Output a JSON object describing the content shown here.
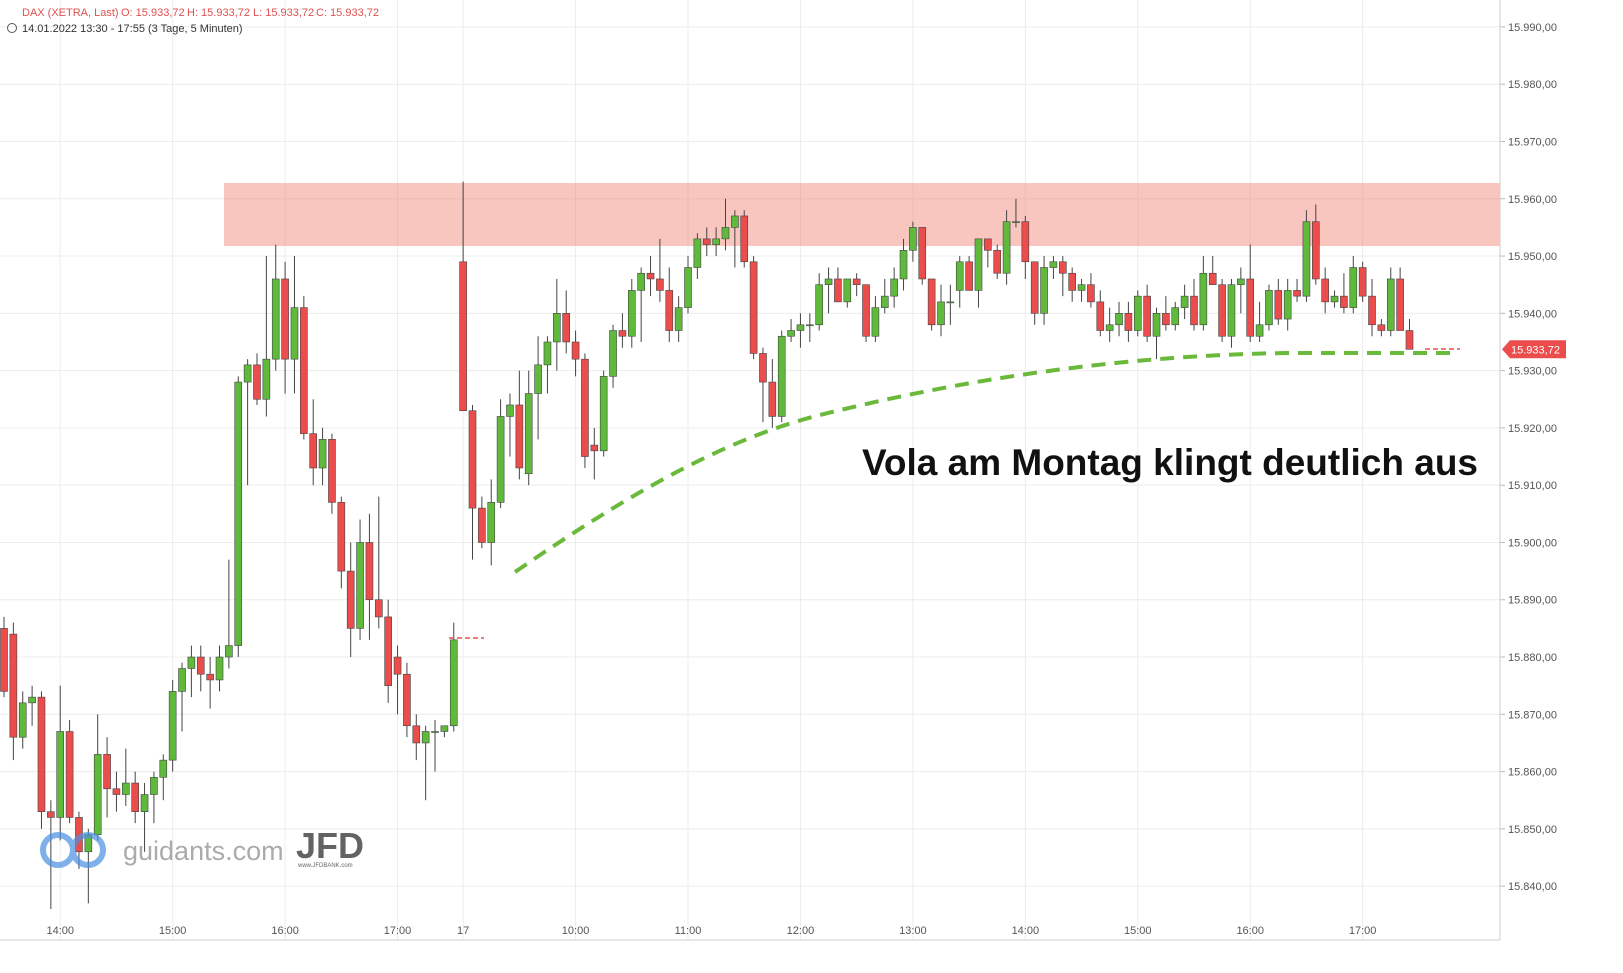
{
  "chart_data": {
    "type": "candlestick",
    "header": [
      "DAX (XETRA, Last)",
      "O: 15.933,72",
      "H: 15.933,72",
      "L: 15.933,72",
      "C: 15.933,72"
    ],
    "subtitle": "14.01.2022 13:30 - 17:55",
    "period": "(3 Tage, 5 Minuten)",
    "annotation": "Vola am Montag klingt deutlich aus",
    "last_label": "15.933,72",
    "watermark": [
      "guidants.com",
      "JFD",
      "www.JFDBANK.com"
    ],
    "up_color": "#5fba3c",
    "down_color": "#eb4d4d",
    "grid": true,
    "ylim": [
      15830.6,
      15994.7
    ],
    "yticks": [
      {
        "value": 15840,
        "label": "15.840,00"
      },
      {
        "value": 15850,
        "label": "15.850,00"
      },
      {
        "value": 15860,
        "label": "15.860,00"
      },
      {
        "value": 15870,
        "label": "15.870,00"
      },
      {
        "value": 15880,
        "label": "15.880,00"
      },
      {
        "value": 15890,
        "label": "15.890,00"
      },
      {
        "value": 15900,
        "label": "15.900,00"
      },
      {
        "value": 15910,
        "label": "15.910,00"
      },
      {
        "value": 15920,
        "label": "15.920,00"
      },
      {
        "value": 15930,
        "label": "15.930,00"
      },
      {
        "value": 15940,
        "label": "15.940,00"
      },
      {
        "value": 15950,
        "label": "15.950,00"
      },
      {
        "value": 15960,
        "label": "15.960,00"
      },
      {
        "value": 15970,
        "label": "15.970,00"
      },
      {
        "value": 15980,
        "label": "15.980,00"
      },
      {
        "value": 15990,
        "label": "15.990,00"
      }
    ],
    "categories": [
      null,
      null,
      null,
      null,
      null,
      null,
      "14:00",
      null,
      null,
      null,
      null,
      null,
      null,
      null,
      null,
      null,
      null,
      null,
      "15:00",
      null,
      null,
      null,
      null,
      null,
      null,
      null,
      null,
      null,
      null,
      null,
      "16:00",
      null,
      null,
      null,
      null,
      null,
      null,
      null,
      null,
      null,
      null,
      null,
      "17:00",
      null,
      null,
      null,
      null,
      null,
      null,
      "17",
      null,
      null,
      null,
      null,
      null,
      null,
      null,
      null,
      null,
      null,
      null,
      "10:00",
      null,
      null,
      null,
      null,
      null,
      null,
      null,
      null,
      null,
      null,
      null,
      "11:00",
      null,
      null,
      null,
      null,
      null,
      null,
      null,
      null,
      null,
      null,
      null,
      "12:00",
      null,
      null,
      null,
      null,
      null,
      null,
      null,
      null,
      null,
      null,
      null,
      "13:00",
      null,
      null,
      null,
      null,
      null,
      null,
      null,
      null,
      null,
      null,
      null,
      "14:00",
      null,
      null,
      null,
      null,
      null,
      null,
      null,
      null,
      null,
      null,
      null,
      "15:00",
      null,
      null,
      null,
      null,
      null,
      null,
      null,
      null,
      null,
      null,
      null,
      "16:00",
      null,
      null,
      null,
      null,
      null,
      null,
      null,
      null,
      null,
      null,
      null,
      "17:00",
      null,
      null,
      null,
      null,
      null
    ],
    "values": [
      [
        15885,
        15887,
        15873,
        15874
      ],
      [
        15884,
        15886,
        15862,
        15866
      ],
      [
        15866,
        15874,
        15864,
        15872
      ],
      [
        15872,
        15875,
        15868,
        15873
      ],
      [
        15873,
        15874,
        15850,
        15853
      ],
      [
        15853,
        15855,
        15836,
        15852
      ],
      [
        15852,
        15875,
        15848,
        15867
      ],
      [
        15867,
        15869,
        15851,
        15852
      ],
      [
        15852,
        15853,
        15843,
        15846
      ],
      [
        15846,
        15850,
        15837,
        15849
      ],
      [
        15849,
        15870,
        15848,
        15863
      ],
      [
        15863,
        15866,
        15852,
        15857
      ],
      [
        15857,
        15860,
        15853,
        15856
      ],
      [
        15856,
        15864,
        15854,
        15858
      ],
      [
        15858,
        15860,
        15851,
        15853
      ],
      [
        15853,
        15858,
        15846,
        15856
      ],
      [
        15856,
        15860,
        15851,
        15859
      ],
      [
        15859,
        15863,
        15855,
        15862
      ],
      [
        15862,
        15876,
        15860,
        15874
      ],
      [
        15874,
        15879,
        15867,
        15878
      ],
      [
        15878,
        15882,
        15873,
        15880
      ],
      [
        15880,
        15882,
        15874,
        15877
      ],
      [
        15877,
        15880,
        15871,
        15876
      ],
      [
        15876,
        15882,
        15874,
        15880
      ],
      [
        15880,
        15897,
        15878,
        15882
      ],
      [
        15882,
        15929,
        15880,
        15928
      ],
      [
        15928,
        15932,
        15910,
        15931
      ],
      [
        15931,
        15933,
        15924,
        15925
      ],
      [
        15925,
        15950,
        15922,
        15932
      ],
      [
        15932,
        15952,
        15930,
        15946
      ],
      [
        15946,
        15949,
        15926,
        15932
      ],
      [
        15932,
        15950,
        15926,
        15941
      ],
      [
        15941,
        15943,
        15918,
        15919
      ],
      [
        15919,
        15925,
        15910,
        15913
      ],
      [
        15913,
        15920,
        15910,
        15918
      ],
      [
        15918,
        15919,
        15905,
        15907
      ],
      [
        15907,
        15908,
        15892,
        15895
      ],
      [
        15895,
        15900,
        15880,
        15885
      ],
      [
        15885,
        15904,
        15883,
        15900
      ],
      [
        15900,
        15905,
        15883,
        15890
      ],
      [
        15890,
        15908,
        15885,
        15887
      ],
      [
        15887,
        15890,
        15872,
        15875
      ],
      [
        15880,
        15882,
        15870,
        15877
      ],
      [
        15877,
        15879,
        15866,
        15868
      ],
      [
        15868,
        15870,
        15862,
        15865
      ],
      [
        15865,
        15868,
        15855,
        15867
      ],
      [
        15867,
        15869,
        15860,
        15867
      ],
      [
        15867,
        15868,
        15866,
        15868
      ],
      [
        15868,
        15886,
        15867,
        15883
      ],
      [
        15949,
        15963,
        15923,
        15923
      ],
      [
        15923,
        15924,
        15897,
        15906
      ],
      [
        15906,
        15908,
        15899,
        15900
      ],
      [
        15900,
        15911,
        15896,
        15907
      ],
      [
        15907,
        15925,
        15906,
        15922
      ],
      [
        15922,
        15926,
        15915,
        15924
      ],
      [
        15924,
        15930,
        15911,
        15913
      ],
      [
        15912,
        15930,
        15910,
        15926
      ],
      [
        15926,
        15936,
        15918,
        15931
      ],
      [
        15931,
        15936,
        15926,
        15935
      ],
      [
        15935,
        15946,
        15930,
        15940
      ],
      [
        15940,
        15944,
        15933,
        15935
      ],
      [
        15935,
        15937,
        15929,
        15932
      ],
      [
        15932,
        15933,
        15913,
        15915
      ],
      [
        15917,
        15920,
        15911,
        15916
      ],
      [
        15916,
        15930,
        15915,
        15929
      ],
      [
        15929,
        15938,
        15927,
        15937
      ],
      [
        15937,
        15940,
        15934,
        15936
      ],
      [
        15936,
        15946,
        15934,
        15944
      ],
      [
        15944,
        15948,
        15935,
        15947
      ],
      [
        15947,
        15950,
        15943,
        15946
      ],
      [
        15946,
        15953,
        15942,
        15944
      ],
      [
        15944,
        15948,
        15935,
        15937
      ],
      [
        15937,
        15943,
        15935,
        15941
      ],
      [
        15941,
        15950,
        15940,
        15948
      ],
      [
        15948,
        15954,
        15946,
        15953
      ],
      [
        15953,
        15955,
        15950,
        15952
      ],
      [
        15952,
        15955,
        15950,
        15953
      ],
      [
        15953,
        15960,
        15951,
        15955
      ],
      [
        15955,
        15958,
        15948,
        15957
      ],
      [
        15957,
        15958,
        15948,
        15949
      ],
      [
        15949,
        15950,
        15932,
        15933
      ],
      [
        15933,
        15934,
        15921,
        15928
      ],
      [
        15928,
        15932,
        15920,
        15922
      ],
      [
        15922,
        15937,
        15921,
        15936
      ],
      [
        15936,
        15939,
        15935,
        15937
      ],
      [
        15937,
        15940,
        15934,
        15938
      ],
      [
        15938,
        15940,
        15935,
        15938
      ],
      [
        15938,
        15947,
        15937,
        15945
      ],
      [
        15945,
        15948,
        15940,
        15946
      ],
      [
        15946,
        15948,
        15942,
        15942
      ],
      [
        15942,
        15946,
        15941,
        15946
      ],
      [
        15946,
        15947,
        15943,
        15945
      ],
      [
        15945,
        15945,
        15935,
        15936
      ],
      [
        15936,
        15943,
        15935,
        15941
      ],
      [
        15941,
        15946,
        15940,
        15943
      ],
      [
        15943,
        15948,
        15941,
        15946
      ],
      [
        15946,
        15953,
        15944,
        15951
      ],
      [
        15951,
        15956,
        15949,
        15955
      ],
      [
        15955,
        15955,
        15945,
        15946
      ],
      [
        15946,
        15946,
        15937,
        15938
      ],
      [
        15938,
        15945,
        15936,
        15942
      ],
      [
        15942,
        15945,
        15938,
        15942
      ],
      [
        15944,
        15950,
        15941,
        15949
      ],
      [
        15949,
        15950,
        15944,
        15944
      ],
      [
        15944,
        15953,
        15941,
        15953
      ],
      [
        15953,
        15953,
        15948,
        15951
      ],
      [
        15951,
        15952,
        15946,
        15947
      ],
      [
        15947,
        15958,
        15945,
        15956
      ],
      [
        15956,
        15960,
        15955,
        15956
      ],
      [
        15956,
        15957,
        15946,
        15949
      ],
      [
        15949,
        15949,
        15938,
        15940
      ],
      [
        15940,
        15950,
        15938,
        15948
      ],
      [
        15948,
        15950,
        15946,
        15949
      ],
      [
        15949,
        15950,
        15943,
        15947
      ],
      [
        15947,
        15948,
        15942,
        15944
      ],
      [
        15944,
        15946,
        15942,
        15945
      ],
      [
        15945,
        15947,
        15941,
        15942
      ],
      [
        15942,
        15944,
        15936,
        15937
      ],
      [
        15937,
        15941,
        15935,
        15938
      ],
      [
        15938,
        15942,
        15936,
        15940
      ],
      [
        15940,
        15942,
        15935,
        15937
      ],
      [
        15937,
        15944,
        15936,
        15943
      ],
      [
        15943,
        15945,
        15935,
        15936
      ],
      [
        15936,
        15941,
        15932,
        15940
      ],
      [
        15940,
        15943,
        15937,
        15938
      ],
      [
        15938,
        15942,
        15937,
        15941
      ],
      [
        15941,
        15945,
        15939,
        15943
      ],
      [
        15943,
        15946,
        15937,
        15938
      ],
      [
        15938,
        15950,
        15937,
        15947
      ],
      [
        15947,
        15950,
        15945,
        15945
      ],
      [
        15945,
        15946,
        15935,
        15936
      ],
      [
        15936,
        15946,
        15934,
        15945
      ],
      [
        15945,
        15948,
        15940,
        15946
      ],
      [
        15946,
        15952,
        15935,
        15936
      ],
      [
        15936,
        15942,
        15935,
        15938
      ],
      [
        15938,
        15945,
        15937,
        15944
      ],
      [
        15944,
        15946,
        15938,
        15939
      ],
      [
        15939,
        15946,
        15937,
        15944
      ],
      [
        15944,
        15946,
        15942,
        15943
      ],
      [
        15943,
        15958,
        15942,
        15956
      ],
      [
        15956,
        15959,
        15945,
        15946
      ],
      [
        15946,
        15948,
        15940,
        15942
      ],
      [
        15942,
        15944,
        15941,
        15943
      ],
      [
        15943,
        15947,
        15940,
        15941
      ],
      [
        15941,
        15950,
        15940,
        15948
      ],
      [
        15948,
        15949,
        15942,
        15943
      ],
      [
        15943,
        15946,
        15936,
        15938
      ],
      [
        15938,
        15939,
        15936,
        15937
      ],
      [
        15937,
        15948,
        15936,
        15946
      ],
      [
        15946,
        15948,
        15937,
        15937
      ],
      [
        15937,
        15939,
        15933.72,
        15933.72
      ]
    ]
  }
}
